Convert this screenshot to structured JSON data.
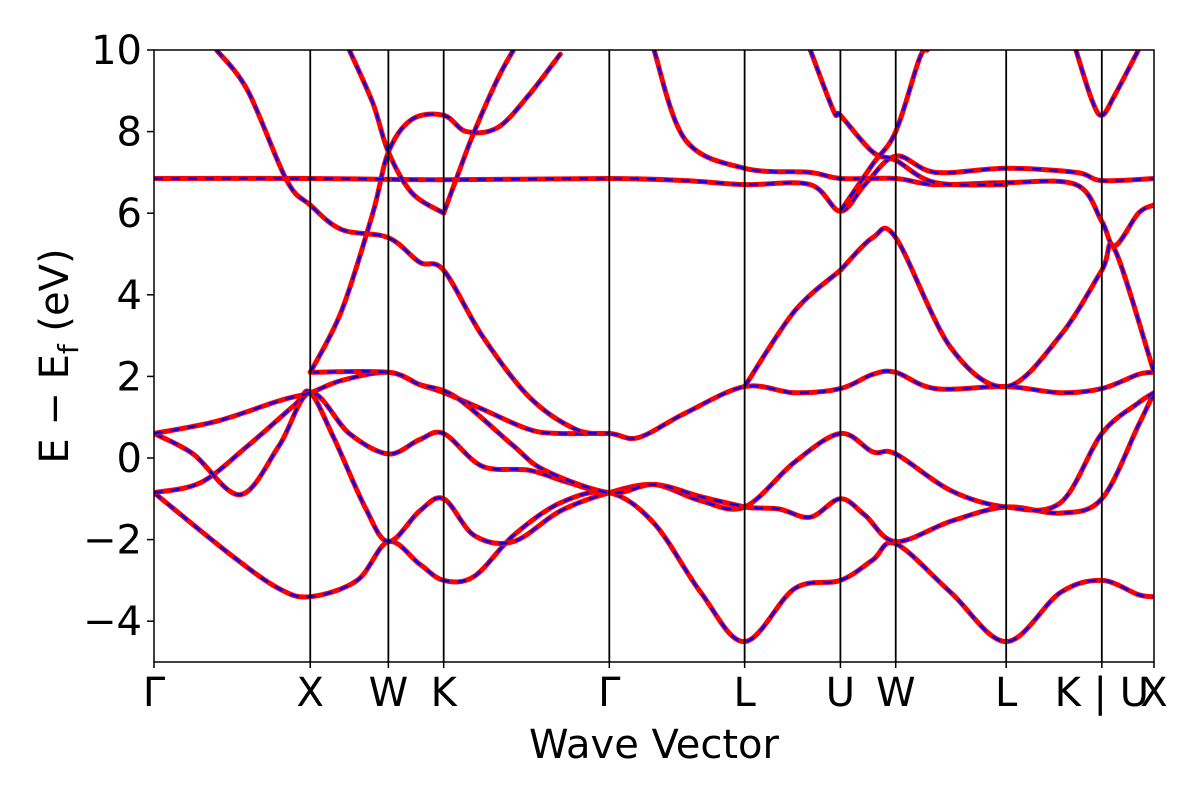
{
  "chart_data": {
    "type": "line",
    "title": "",
    "xlabel": "Wave Vector",
    "ylabel": "E − E",
    "ylabel_subscript": "f",
    "ylabel_unit": "(eV)",
    "ylim": [
      -5,
      10
    ],
    "yticks": [
      -4,
      -2,
      0,
      2,
      4,
      6,
      8,
      10
    ],
    "ytick_labels": [
      "−4",
      "−2",
      "0",
      "2",
      "4",
      "6",
      "8",
      "10"
    ],
    "xlim": [
      0,
      6.4
    ],
    "kpoints": [
      {
        "label": "Γ",
        "x": 0
      },
      {
        "label": "X",
        "x": 1.0
      },
      {
        "label": "W",
        "x": 1.5
      },
      {
        "label": "K",
        "x": 1.854
      },
      {
        "label": "Γ",
        "x": 2.914
      },
      {
        "label": "L",
        "x": 3.78
      },
      {
        "label": "U",
        "x": 4.393
      },
      {
        "label": "W",
        "x": 4.747
      },
      {
        "label": "L",
        "x": 5.454
      },
      {
        "label": "K | U",
        "x": 6.066
      },
      {
        "label": "X",
        "x": 6.4
      }
    ],
    "grid": false,
    "legend": "none",
    "line_colors": {
      "dft": "#ff0000",
      "fit": "#0000ff"
    },
    "bands": [
      [
        [
          0,
          -0.85
        ],
        [
          0.5,
          -2.4
        ],
        [
          0.8,
          -3.2
        ],
        [
          1.0,
          -3.4
        ],
        [
          1.3,
          -3.0
        ],
        [
          1.5,
          -2.05
        ],
        [
          1.7,
          -2.6
        ],
        [
          1.854,
          -3.0
        ],
        [
          2.05,
          -2.9
        ],
        [
          2.3,
          -1.9
        ],
        [
          2.6,
          -1.1
        ],
        [
          2.914,
          -0.85
        ],
        [
          3.2,
          -1.6
        ],
        [
          3.5,
          -3.3
        ],
        [
          3.78,
          -4.5
        ],
        [
          4.1,
          -3.2
        ],
        [
          4.393,
          -3.0
        ],
        [
          4.6,
          -2.5
        ],
        [
          4.747,
          -2.1
        ],
        [
          5.1,
          -3.3
        ],
        [
          5.454,
          -4.5
        ],
        [
          5.8,
          -3.3
        ],
        [
          6.066,
          -3.0
        ],
        [
          6.3,
          -3.35
        ],
        [
          6.4,
          -3.4
        ]
      ],
      [
        [
          0,
          -0.85
        ],
        [
          0.3,
          -0.6
        ],
        [
          0.6,
          0.3
        ],
        [
          0.9,
          1.3
        ],
        [
          1.0,
          1.6
        ],
        [
          1.15,
          0.5
        ],
        [
          1.35,
          -1.2
        ],
        [
          1.5,
          -2.05
        ],
        [
          1.7,
          -1.3
        ],
        [
          1.854,
          -1.0
        ],
        [
          2.05,
          -1.9
        ],
        [
          2.3,
          -2.05
        ],
        [
          2.6,
          -1.3
        ],
        [
          2.914,
          -0.85
        ],
        [
          3.2,
          -0.65
        ],
        [
          3.5,
          -0.95
        ],
        [
          3.78,
          -1.2
        ],
        [
          4.0,
          -1.25
        ],
        [
          4.2,
          -1.45
        ],
        [
          4.393,
          -1.0
        ],
        [
          4.55,
          -1.4
        ],
        [
          4.747,
          -2.05
        ],
        [
          5.1,
          -1.55
        ],
        [
          5.454,
          -1.2
        ],
        [
          5.8,
          -1.35
        ],
        [
          6.066,
          -1.0
        ],
        [
          6.3,
          0.8
        ],
        [
          6.4,
          1.6
        ]
      ],
      [
        [
          0,
          0.6
        ],
        [
          0.25,
          0.1
        ],
        [
          0.55,
          -0.9
        ],
        [
          0.8,
          0.3
        ],
        [
          1.0,
          1.6
        ],
        [
          1.25,
          0.6
        ],
        [
          1.5,
          0.1
        ],
        [
          1.7,
          0.45
        ],
        [
          1.854,
          0.6
        ],
        [
          2.1,
          -0.2
        ],
        [
          2.4,
          -0.3
        ],
        [
          2.65,
          -0.6
        ],
        [
          2.914,
          -0.85
        ],
        [
          3.2,
          -0.65
        ],
        [
          3.5,
          -1.05
        ],
        [
          3.78,
          -1.2
        ],
        [
          4.1,
          -0.1
        ],
        [
          4.393,
          0.6
        ],
        [
          4.6,
          0.15
        ],
        [
          4.747,
          0.1
        ],
        [
          5.1,
          -0.8
        ],
        [
          5.454,
          -1.2
        ],
        [
          5.8,
          -1.1
        ],
        [
          6.066,
          0.6
        ],
        [
          6.3,
          1.35
        ],
        [
          6.4,
          1.6
        ]
      ],
      [
        [
          0,
          0.6
        ],
        [
          0.4,
          0.9
        ],
        [
          0.8,
          1.4
        ],
        [
          1.0,
          1.6
        ],
        [
          1.2,
          1.9
        ],
        [
          1.5,
          2.1
        ],
        [
          1.7,
          1.8
        ],
        [
          1.854,
          1.6
        ],
        [
          2.1,
          1.2
        ],
        [
          2.4,
          0.7
        ],
        [
          2.6,
          0.6
        ],
        [
          2.914,
          0.6
        ],
        [
          3.1,
          0.5
        ],
        [
          3.4,
          1.1
        ],
        [
          3.78,
          1.75
        ],
        [
          4.1,
          1.6
        ],
        [
          4.393,
          1.7
        ],
        [
          4.6,
          2.05
        ],
        [
          4.747,
          2.1
        ],
        [
          5.0,
          1.7
        ],
        [
          5.454,
          1.75
        ],
        [
          5.8,
          1.6
        ],
        [
          6.066,
          1.7
        ],
        [
          6.3,
          2.05
        ],
        [
          6.4,
          2.1
        ]
      ],
      [
        [
          1.0,
          2.1
        ],
        [
          1.5,
          2.1
        ],
        [
          1.7,
          1.8
        ],
        [
          1.854,
          1.65
        ],
        [
          2.0,
          1.3
        ],
        [
          2.3,
          0.3
        ],
        [
          2.5,
          -0.3
        ],
        [
          2.914,
          -0.85
        ],
        [
          3.2,
          -0.65
        ],
        [
          3.5,
          -0.95
        ],
        [
          3.78,
          -1.2
        ]
      ],
      [
        [
          1.0,
          2.1
        ],
        [
          1.2,
          3.6
        ],
        [
          1.4,
          6.0
        ],
        [
          1.5,
          7.5
        ],
        [
          1.65,
          8.3
        ],
        [
          1.854,
          8.4
        ],
        [
          2.0,
          8.0
        ],
        [
          2.2,
          8.1
        ],
        [
          2.4,
          8.9
        ],
        [
          2.6,
          9.9
        ]
      ],
      [
        [
          1.854,
          6.0
        ],
        [
          1.95,
          7.0
        ],
        [
          2.05,
          8.0
        ],
        [
          2.2,
          9.3
        ],
        [
          2.3,
          10.0
        ]
      ],
      [
        [
          0,
          6.85
        ],
        [
          1.0,
          6.85
        ],
        [
          1.854,
          6.82
        ],
        [
          2.914,
          6.85
        ],
        [
          3.4,
          6.8
        ],
        [
          3.78,
          6.7
        ],
        [
          4.2,
          6.7
        ],
        [
          4.393,
          6.05
        ],
        [
          4.55,
          6.7
        ],
        [
          4.747,
          7.4
        ],
        [
          5.0,
          7.0
        ],
        [
          5.454,
          7.1
        ],
        [
          5.9,
          7.0
        ],
        [
          6.066,
          6.8
        ],
        [
          6.4,
          6.85
        ]
      ],
      [
        [
          0.4,
          10.0
        ],
        [
          0.6,
          9.0
        ],
        [
          0.85,
          6.8
        ],
        [
          1.0,
          6.2
        ],
        [
          1.2,
          5.6
        ],
        [
          1.5,
          5.4
        ],
        [
          1.7,
          4.8
        ],
        [
          1.854,
          4.6
        ],
        [
          2.1,
          3.0
        ],
        [
          2.4,
          1.5
        ],
        [
          2.7,
          0.7
        ],
        [
          2.914,
          0.6
        ]
      ],
      [
        [
          1.25,
          10.0
        ],
        [
          1.4,
          8.7
        ],
        [
          1.5,
          7.5
        ],
        [
          1.65,
          6.5
        ],
        [
          1.854,
          6.0
        ]
      ],
      [
        [
          3.2,
          10.0
        ],
        [
          3.4,
          7.8
        ],
        [
          3.78,
          7.1
        ],
        [
          4.2,
          7.0
        ],
        [
          4.393,
          6.85
        ],
        [
          4.747,
          6.85
        ],
        [
          5.0,
          6.7
        ],
        [
          5.454,
          6.75
        ],
        [
          5.9,
          6.7
        ],
        [
          6.066,
          5.8
        ],
        [
          6.15,
          5.2
        ],
        [
          6.3,
          6.0
        ],
        [
          6.4,
          6.2
        ]
      ],
      [
        [
          4.2,
          10.0
        ],
        [
          4.35,
          8.5
        ],
        [
          4.393,
          8.4
        ],
        [
          4.6,
          7.5
        ],
        [
          4.747,
          7.3
        ],
        [
          5.0,
          6.75
        ],
        [
          5.454,
          6.7
        ]
      ],
      [
        [
          4.393,
          4.6
        ],
        [
          4.6,
          5.4
        ],
        [
          4.747,
          5.4
        ],
        [
          5.1,
          2.7
        ],
        [
          5.454,
          1.75
        ],
        [
          5.8,
          3.0
        ],
        [
          6.066,
          4.6
        ],
        [
          6.15,
          5.1
        ],
        [
          6.4,
          2.1
        ]
      ],
      [
        [
          3.78,
          1.75
        ],
        [
          4.1,
          3.6
        ],
        [
          4.393,
          4.6
        ]
      ],
      [
        [
          4.393,
          6.05
        ],
        [
          4.6,
          7.2
        ],
        [
          4.747,
          8.0
        ],
        [
          4.9,
          9.8
        ],
        [
          4.95,
          10.0
        ]
      ],
      [
        [
          5.9,
          10.0
        ],
        [
          6.0,
          8.8
        ],
        [
          6.066,
          8.4
        ],
        [
          6.15,
          8.9
        ],
        [
          6.3,
          10.0
        ]
      ]
    ]
  }
}
